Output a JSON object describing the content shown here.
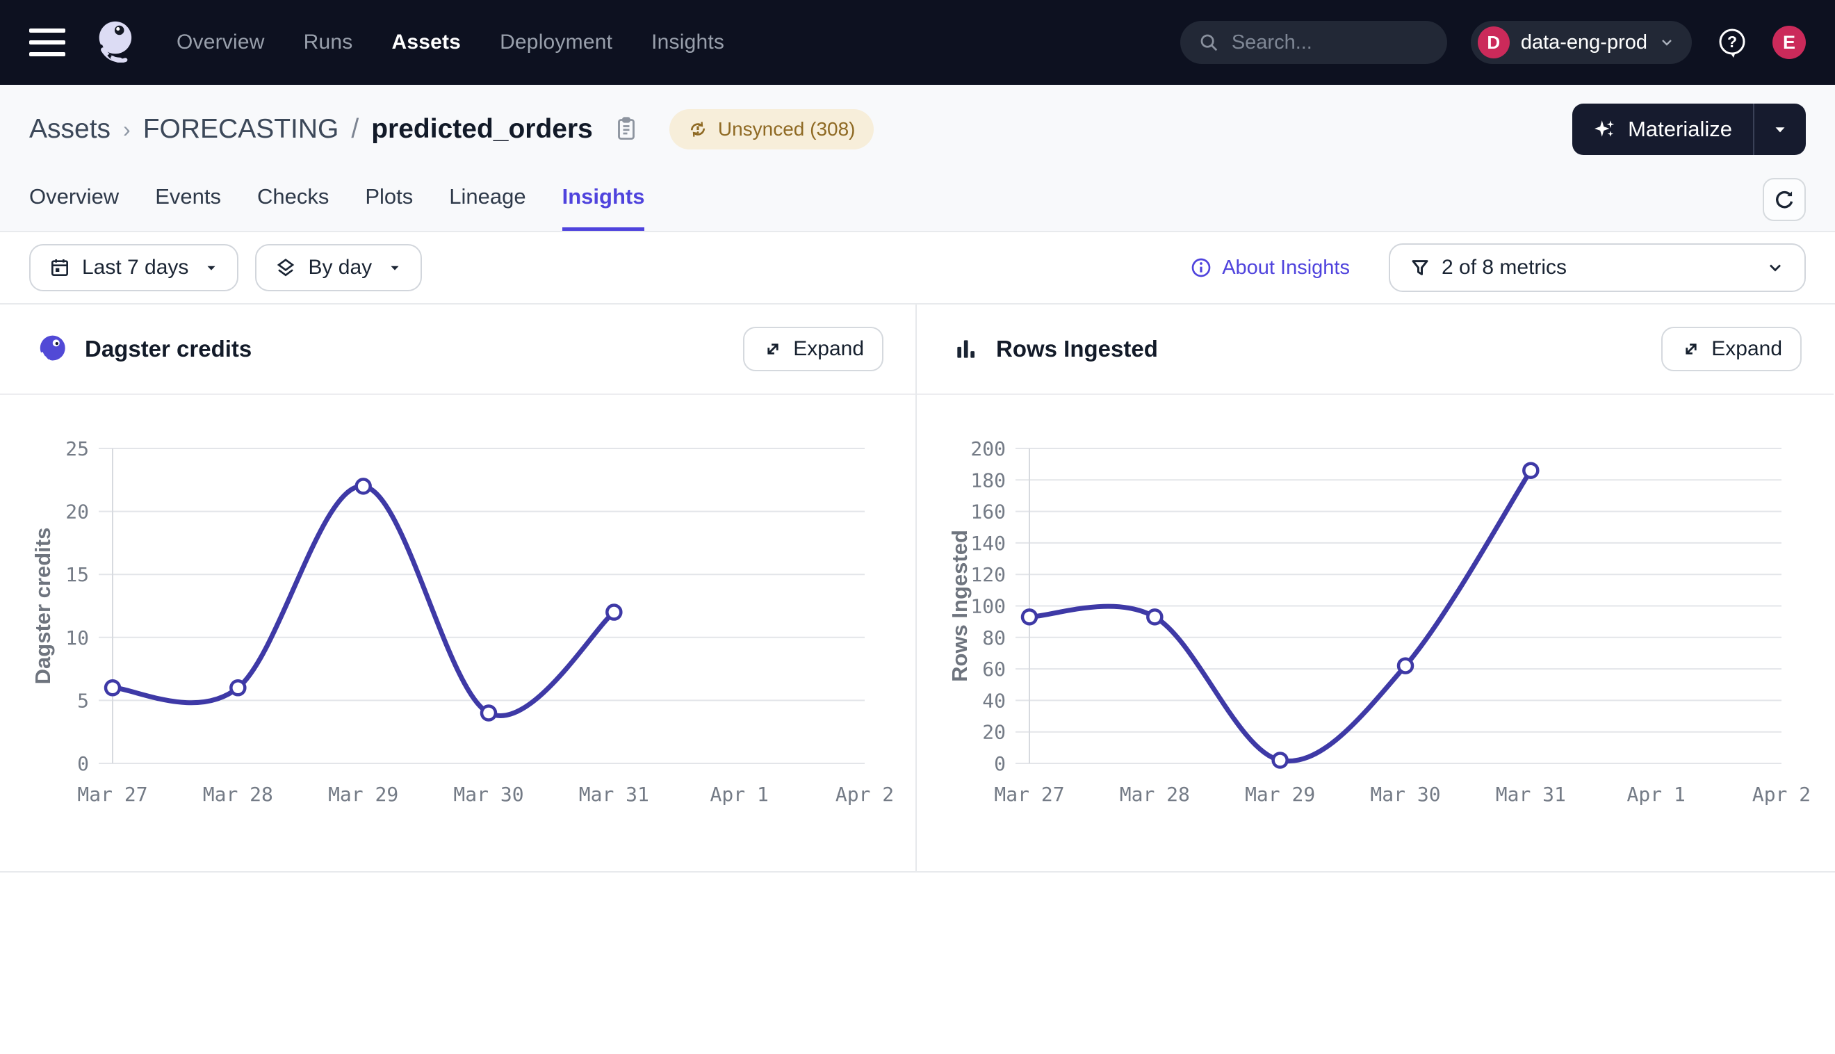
{
  "nav": {
    "items": [
      {
        "label": "Overview",
        "active": false
      },
      {
        "label": "Runs",
        "active": false
      },
      {
        "label": "Assets",
        "active": true
      },
      {
        "label": "Deployment",
        "active": false
      },
      {
        "label": "Insights",
        "active": false
      }
    ],
    "search": {
      "placeholder": "Search...",
      "shortcut": "/"
    },
    "deployment": {
      "initial": "D",
      "name": "data-eng-prod"
    },
    "avatar_initial": "E"
  },
  "breadcrumb": {
    "root": "Assets",
    "chevron": "›",
    "group": "FORECASTING",
    "slash": "/",
    "asset": "predicted_orders"
  },
  "status_badge": {
    "label": "Unsynced (308)"
  },
  "materialize": {
    "label": "Materialize"
  },
  "tabs": [
    {
      "label": "Overview",
      "active": false
    },
    {
      "label": "Events",
      "active": false
    },
    {
      "label": "Checks",
      "active": false
    },
    {
      "label": "Plots",
      "active": false
    },
    {
      "label": "Lineage",
      "active": false
    },
    {
      "label": "Insights",
      "active": true
    }
  ],
  "filters": {
    "date_range": "Last 7 days",
    "granularity": "By day",
    "about_link": "About Insights",
    "metrics": "2 of 8 metrics"
  },
  "colors": {
    "accent": "#4f43dd",
    "nav_bg": "#0d1120",
    "crimson": "#cb2a5a",
    "line": "#3e39a6",
    "badge_bg": "#f7eeda",
    "badge_text": "#8f6a24"
  },
  "chart_data": [
    {
      "type": "line",
      "title": "Dagster credits",
      "icon": "dagster-credits-icon",
      "expand_label": "Expand",
      "ylabel": "Dagster credits",
      "x": [
        "Mar 27",
        "Mar 28",
        "Mar 29",
        "Mar 30",
        "Mar 31",
        "Apr 1",
        "Apr 2"
      ],
      "values": [
        6,
        6,
        22,
        4,
        12,
        null,
        null
      ],
      "y_ticks": [
        0,
        5,
        10,
        15,
        20,
        25
      ],
      "ylim": [
        0,
        25
      ],
      "line_color": "#3e39a6",
      "grid": true,
      "legend": "none"
    },
    {
      "type": "line",
      "title": "Rows Ingested",
      "icon": "bar-chart-icon",
      "expand_label": "Expand",
      "ylabel": "Rows Ingested",
      "x": [
        "Mar 27",
        "Mar 28",
        "Mar 29",
        "Mar 30",
        "Mar 31",
        "Apr 1",
        "Apr 2"
      ],
      "values": [
        93,
        93,
        2,
        62,
        186,
        null,
        null
      ],
      "y_ticks": [
        0,
        20,
        40,
        60,
        80,
        100,
        120,
        140,
        160,
        180,
        200
      ],
      "ylim": [
        0,
        200
      ],
      "line_color": "#3e39a6",
      "grid": true,
      "legend": "none"
    }
  ]
}
